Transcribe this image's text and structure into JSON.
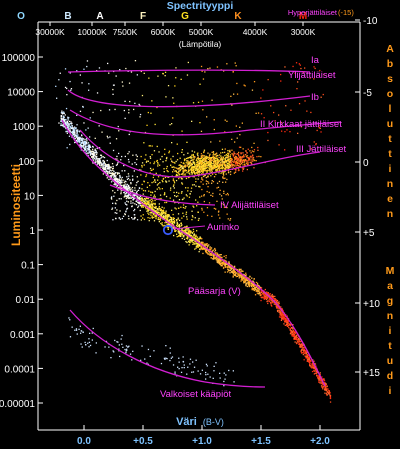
{
  "title": "Spectrityyppi",
  "spectral_classes": [
    {
      "letter": "O",
      "color": "#8fd8ff"
    },
    {
      "letter": "B",
      "color": "#cfeaff"
    },
    {
      "letter": "A",
      "color": "#ffffff"
    },
    {
      "letter": "F",
      "color": "#fff4c0"
    },
    {
      "letter": "G",
      "color": "#ffe020"
    },
    {
      "letter": "K",
      "color": "#ff9020"
    },
    {
      "letter": "M",
      "color": "#ff2a10"
    }
  ],
  "temperatures": [
    "30000K",
    "10000K",
    "7500K",
    "6000K",
    "5000K",
    "4000K",
    "3000K"
  ],
  "temperature_label": "(Lämpötila)",
  "hypergiant_label": "Hyperjättiläiset",
  "hypergiant_mag": "(-15)",
  "left_axis_label": "Luminositeetti",
  "left_ticks": [
    "100000",
    "10000",
    "1000",
    "100",
    "10",
    "1",
    "0.1",
    "0.01",
    "0.001",
    "0.0001",
    "0.00001"
  ],
  "right_axis_label": "Absoluttinen Magnitudi",
  "right_ticks": [
    "-10",
    "-5",
    "0",
    "+5",
    "+10",
    "+15"
  ],
  "bottom_axis_label": "Väri",
  "bottom_axis_unit": "(B-V)",
  "bottom_ticks": [
    "0.0",
    "+0.5",
    "+1.0",
    "+1.5",
    "+2.0"
  ],
  "region_labels": {
    "ia": "Ia",
    "ia_name": "Ylijättiläiset",
    "ib": "Ib",
    "ii": "II Kirkkaat jättiläiset",
    "iii": "III Jättiläiset",
    "iv": "IV  Alijättiläiset",
    "sun": "Aurinko",
    "main_sequence": "Pääsarja  (V)",
    "white_dwarfs": "Valkoiset kääpiöt"
  },
  "colors": {
    "background": "#000000",
    "accent_orange": "#ff9a1a",
    "title_blue": "#7fc3ff",
    "track_magenta": "#d11fd1",
    "region_label": "#ff44ff",
    "axis_text": "#ffffff"
  }
}
